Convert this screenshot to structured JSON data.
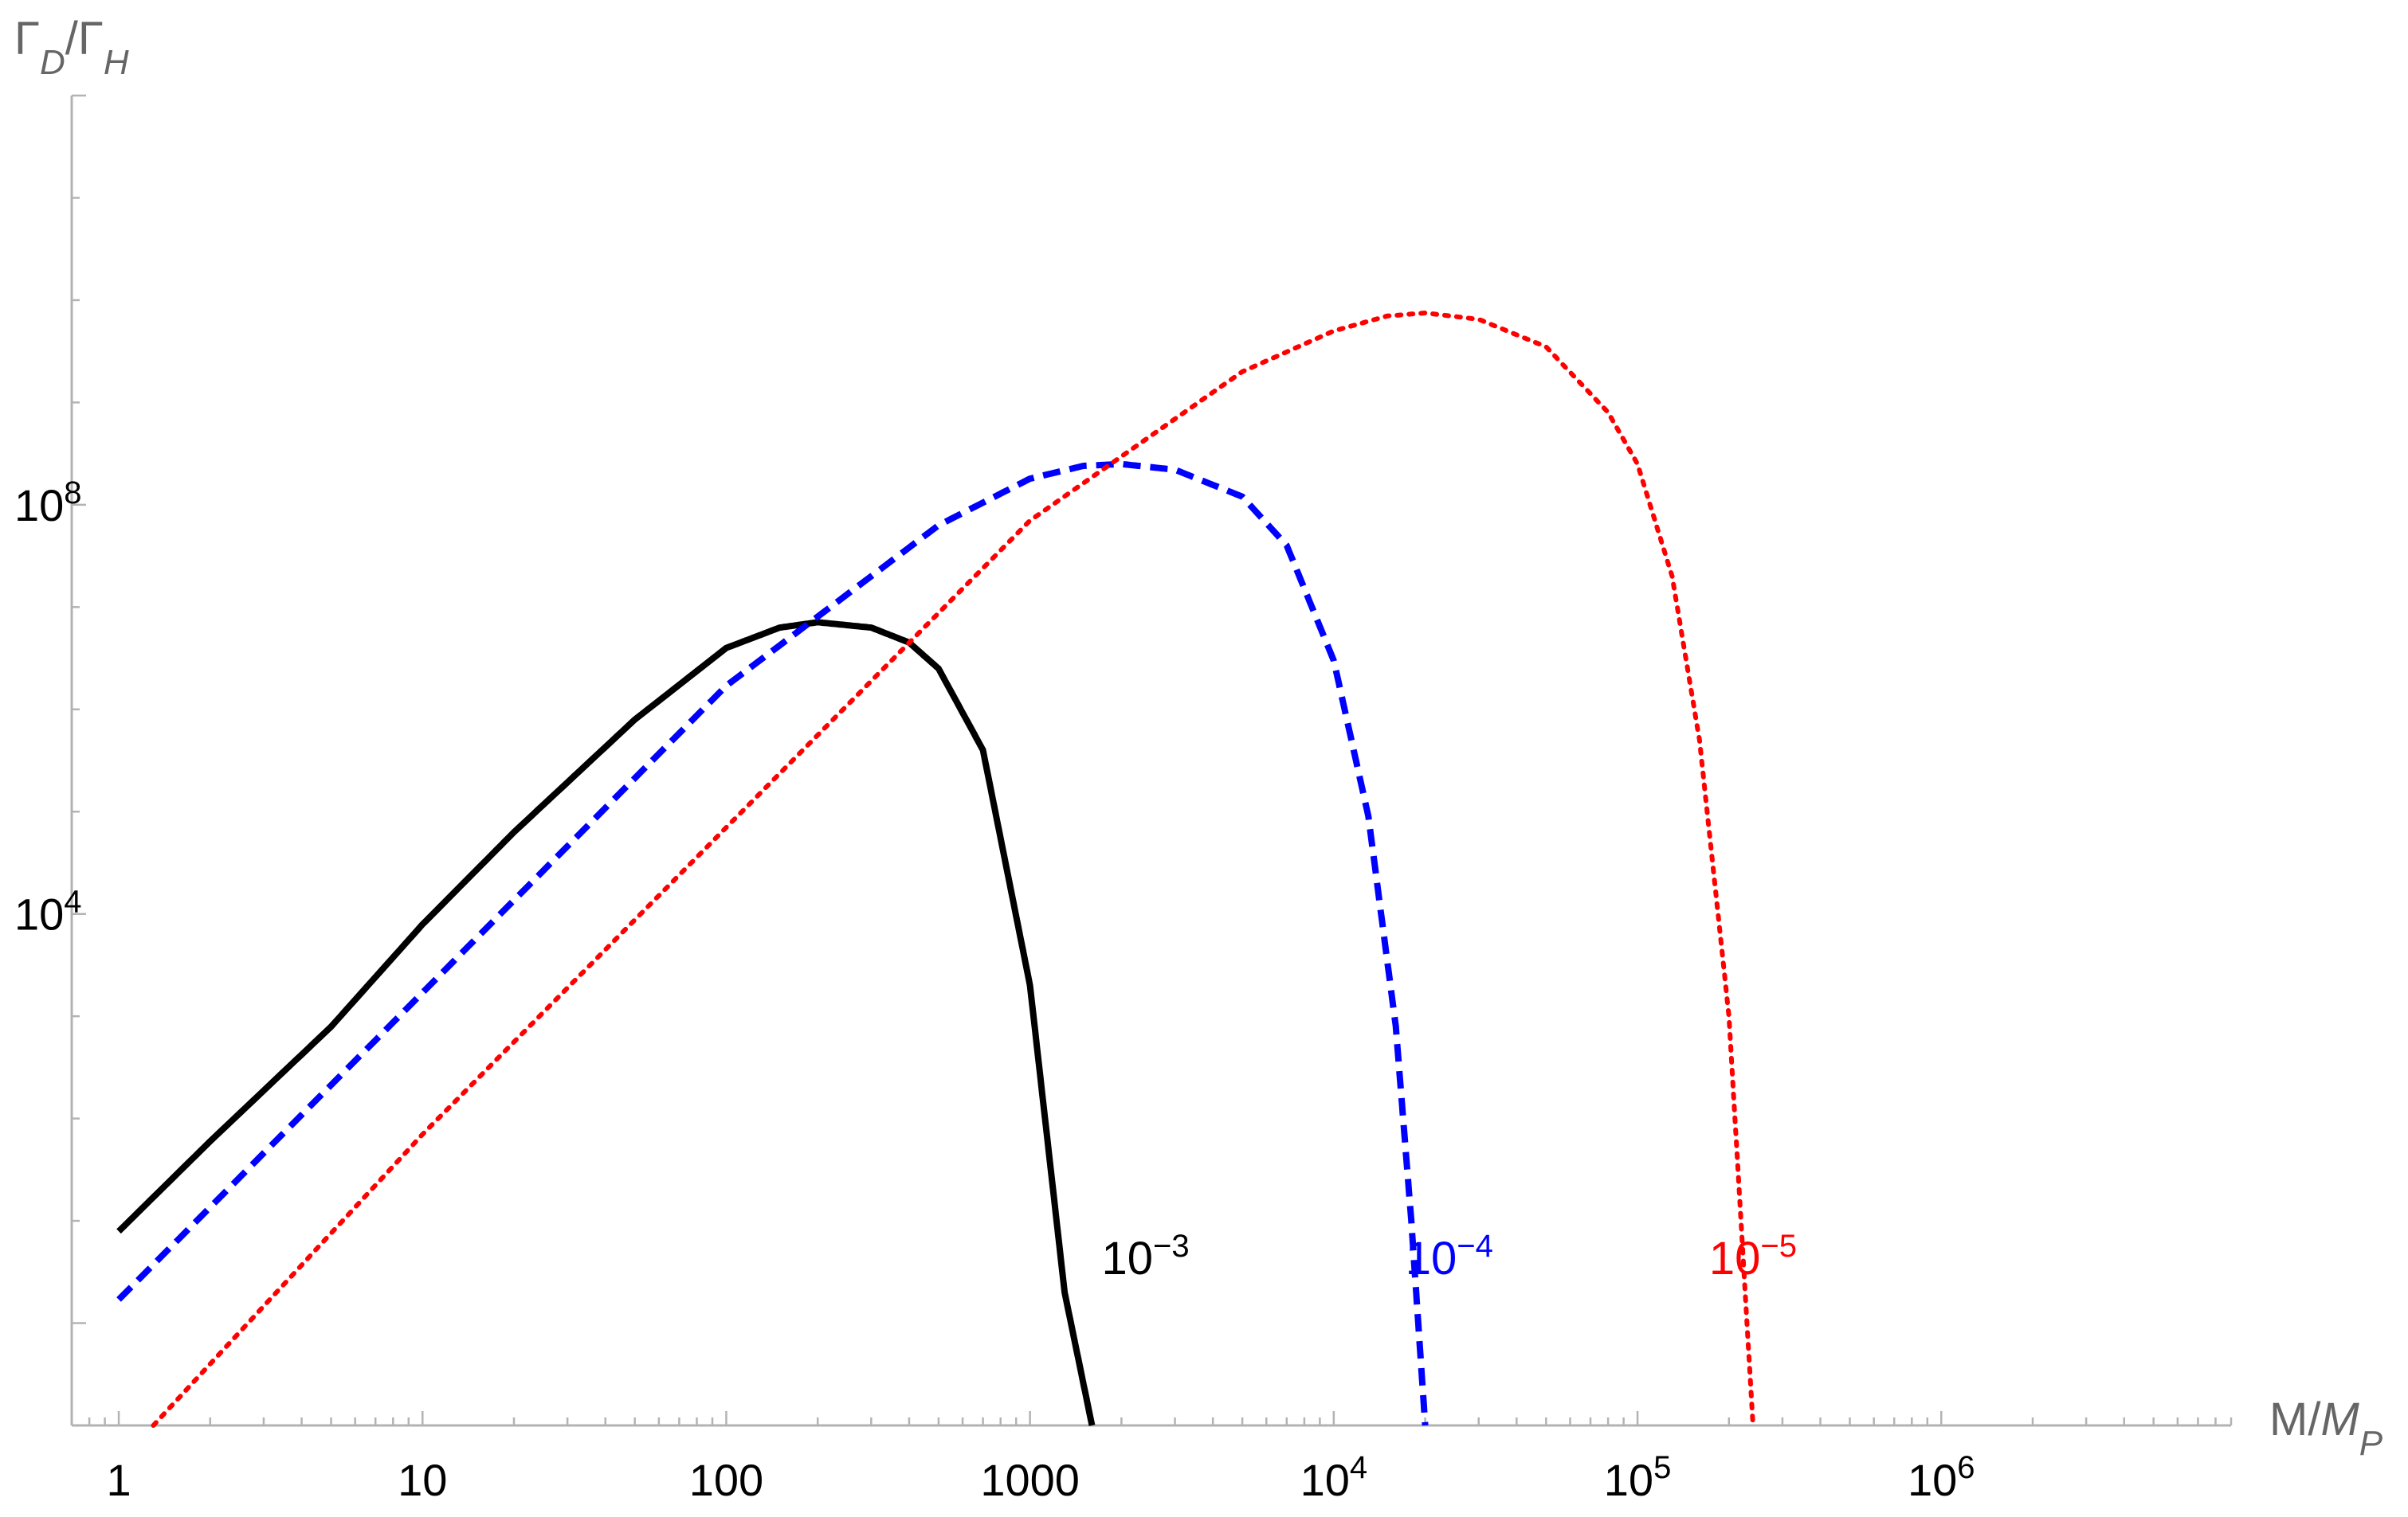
{
  "chart_data": {
    "type": "line",
    "title": "",
    "xlabel": "M/M_P",
    "ylabel": "Γ_D/Γ_H",
    "xscale": "log",
    "yscale": "log",
    "xlim": [
      0.7,
      9000000
    ],
    "ylim": [
      0.1,
      1000000000000
    ],
    "grid": false,
    "legend": "none",
    "x_ticks": [
      {
        "value": 1,
        "label": "1"
      },
      {
        "value": 10,
        "label": "10"
      },
      {
        "value": 100,
        "label": "100"
      },
      {
        "value": 1000,
        "label": "1000"
      },
      {
        "value": 10000,
        "base": "10",
        "exp": "4"
      },
      {
        "value": 100000,
        "base": "10",
        "exp": "5"
      },
      {
        "value": 1000000,
        "base": "10",
        "exp": "6"
      }
    ],
    "y_ticks": [
      {
        "value": 10000,
        "base": "10",
        "exp": "4"
      },
      {
        "value": 100000000,
        "base": "10",
        "exp": "8"
      }
    ],
    "series": [
      {
        "color": "#000000",
        "dash": "solid",
        "label_base": "10",
        "label_exp": "−3",
        "label_at": [
          2400,
          3
        ],
        "x": [
          1,
          2,
          5,
          10,
          20,
          50,
          100,
          150,
          200,
          300,
          400,
          500,
          700,
          1000,
          1300,
          1600
        ],
        "y": [
          7.9,
          60,
          790,
          7900,
          63000,
          794000,
          3980000,
          6300000,
          7100000,
          6300000,
          4500000,
          2500000,
          400000,
          2000,
          2,
          0.1
        ]
      },
      {
        "color": "#0000ff",
        "dash": "dashed",
        "label_base": "10",
        "label_exp": "−4",
        "label_at": [
          24000,
          3
        ],
        "x": [
          1,
          10,
          100,
          500,
          1000,
          1500,
          2000,
          3000,
          5000,
          7000,
          10000,
          13000,
          16000,
          18000,
          20000
        ],
        "y": [
          1.7,
          1700,
          1700000,
          63000000,
          180000000,
          240000000,
          250000000,
          220000000,
          120000000,
          40000000,
          3000000,
          90000,
          800,
          10,
          0.1
        ]
      },
      {
        "color": "#ff0000",
        "dash": "dotted",
        "label_base": "10",
        "label_exp": "−5",
        "label_at": [
          240000,
          3
        ],
        "x": [
          1.3,
          10,
          100,
          1000,
          5000,
          10000,
          15000,
          20000,
          30000,
          50000,
          80000,
          100000,
          130000,
          160000,
          200000,
          240000
        ],
        "y": [
          0.1,
          70,
          70000,
          70000000,
          2000000000,
          5000000000,
          7000000000,
          7500000000,
          6500000000,
          3500000000,
          800000000,
          250000000,
          20000000,
          500000,
          1000,
          0.1
        ]
      }
    ]
  }
}
